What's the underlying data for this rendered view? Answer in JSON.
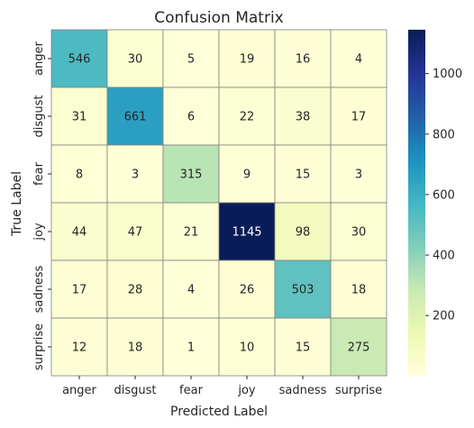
{
  "chart_data": {
    "type": "heatmap",
    "title": "Confusion Matrix",
    "xlabel": "Predicted Label",
    "ylabel": "True Label",
    "x_categories": [
      "anger",
      "disgust",
      "fear",
      "joy",
      "sadness",
      "surprise"
    ],
    "y_categories": [
      "anger",
      "disgust",
      "fear",
      "joy",
      "sadness",
      "surprise"
    ],
    "values": [
      [
        546,
        30,
        5,
        19,
        16,
        4
      ],
      [
        31,
        661,
        6,
        22,
        38,
        17
      ],
      [
        8,
        3,
        315,
        9,
        15,
        3
      ],
      [
        44,
        47,
        21,
        1145,
        98,
        30
      ],
      [
        17,
        28,
        4,
        26,
        503,
        18
      ],
      [
        12,
        18,
        1,
        10,
        15,
        275
      ]
    ],
    "colormap": "YlGnBu",
    "colorbar": {
      "vmin": 1,
      "vmax": 1145,
      "ticks": [
        200,
        400,
        600,
        800,
        1000
      ]
    },
    "cell_border_color": "#808080",
    "annotation_dark_text": "#262626",
    "annotation_light_text": "#ffffff"
  }
}
